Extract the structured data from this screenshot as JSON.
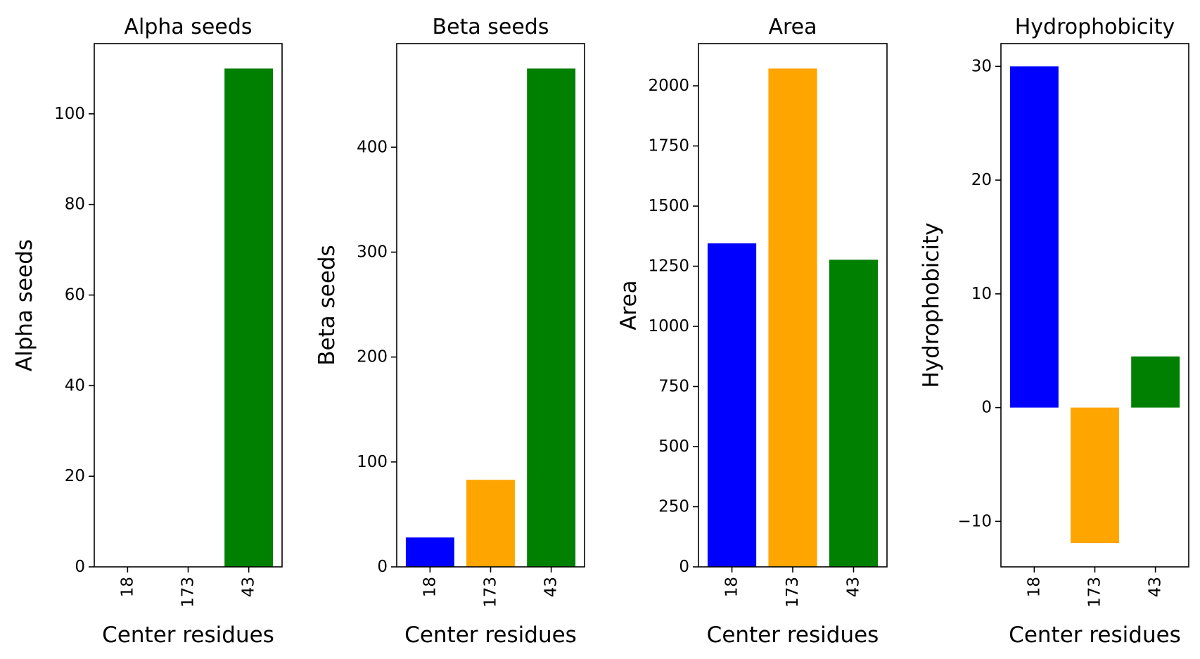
{
  "colors": [
    "#0000ff",
    "#ffa500",
    "#008000"
  ],
  "chart_data": [
    {
      "type": "bar",
      "title": "Alpha seeds",
      "xlabel": "Center residues",
      "ylabel": "Alpha seeds",
      "categories": [
        "18",
        "173",
        "43"
      ],
      "values": [
        0,
        0,
        110
      ],
      "ylim": [
        0,
        115.5
      ],
      "yticks": [
        0,
        20,
        40,
        60,
        80,
        100
      ],
      "ytick_labels": [
        "0",
        "20",
        "40",
        "60",
        "80",
        "100"
      ],
      "grid": false,
      "legend": "none"
    },
    {
      "type": "bar",
      "title": "Beta seeds",
      "xlabel": "Center residues",
      "ylabel": "Beta seeds",
      "categories": [
        "18",
        "173",
        "43"
      ],
      "values": [
        28,
        83,
        475
      ],
      "ylim": [
        0,
        498.75
      ],
      "yticks": [
        0,
        100,
        200,
        300,
        400
      ],
      "ytick_labels": [
        "0",
        "100",
        "200",
        "300",
        "400"
      ],
      "grid": false,
      "legend": "none"
    },
    {
      "type": "bar",
      "title": "Area",
      "xlabel": "Center residues",
      "ylabel": "Area",
      "categories": [
        "18",
        "173",
        "43"
      ],
      "values": [
        1345,
        2072,
        1277
      ],
      "ylim": [
        0,
        2175.6
      ],
      "yticks": [
        0,
        250,
        500,
        750,
        1000,
        1250,
        1500,
        1750,
        2000
      ],
      "ytick_labels": [
        "0",
        "250",
        "500",
        "750",
        "1000",
        "1250",
        "1500",
        "1750",
        "2000"
      ],
      "grid": false,
      "legend": "none"
    },
    {
      "type": "bar",
      "title": "Hydrophobicity",
      "xlabel": "Center residues",
      "ylabel": "Hydrophobicity",
      "categories": [
        "18",
        "173",
        "43"
      ],
      "values": [
        30,
        -11.9,
        4.5
      ],
      "ylim": [
        -14,
        32
      ],
      "yticks": [
        -10,
        0,
        10,
        20,
        30
      ],
      "ytick_labels": [
        "−10",
        "0",
        "10",
        "20",
        "30"
      ],
      "grid": false,
      "legend": "none"
    }
  ]
}
